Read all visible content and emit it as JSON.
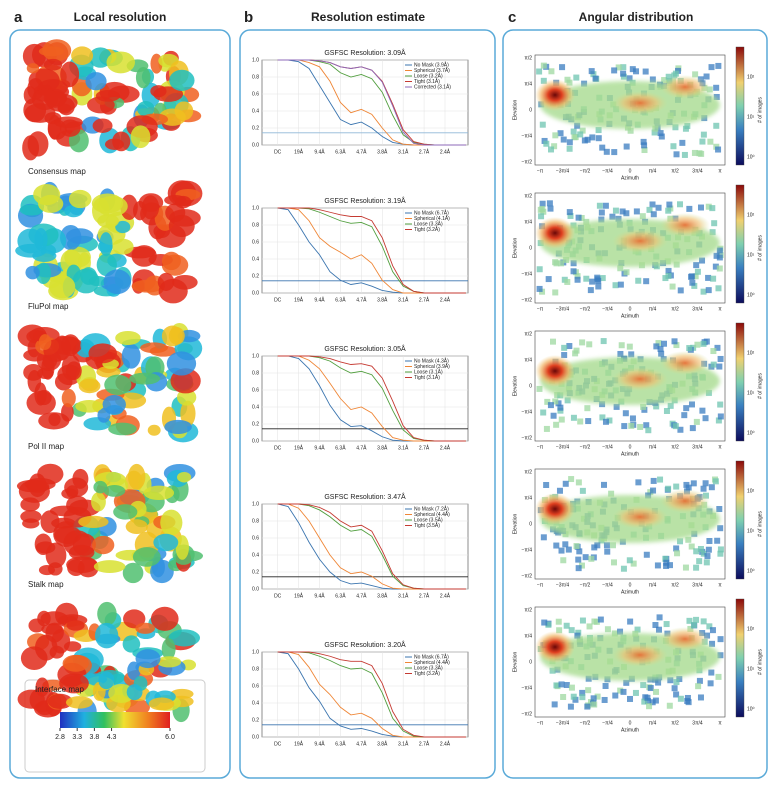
{
  "panels": [
    {
      "letter": "a",
      "title": "Local resolution"
    },
    {
      "letter": "b",
      "title": "Resolution estimate"
    },
    {
      "letter": "c",
      "title": "Angular distribution"
    }
  ],
  "local_resolution": {
    "maps": [
      "Consensus map",
      "FluPol map",
      "Pol II map",
      "Stalk map",
      "Interface map"
    ],
    "colorbar_ticks": [
      2.8,
      3.3,
      3.8,
      4.3,
      {
        "value": 6,
        "label": "6.0"
      }
    ],
    "colorbar_lim": [
      2.8,
      6
    ]
  },
  "fsc_axes": {
    "xlim": [
      -0.75,
      9.1
    ],
    "xticks": [
      {
        "value": 0,
        "label": "DC"
      },
      {
        "value": 1,
        "label": "19Å"
      },
      {
        "value": 2,
        "label": "9.4Å"
      },
      {
        "value": 3,
        "label": "6.3Å"
      },
      {
        "value": 4,
        "label": "4.7Å"
      },
      {
        "value": 5,
        "label": "3.8Å"
      },
      {
        "value": 6,
        "label": "3.1Å"
      },
      {
        "value": 7,
        "label": "2.7Å"
      },
      {
        "value": 8,
        "label": "2.4Å"
      }
    ],
    "ylim": [
      0,
      1
    ],
    "yticks": [
      {
        "value": 0,
        "label": "0.0"
      },
      {
        "value": 0.2,
        "label": "0.2"
      },
      {
        "value": 0.4,
        "label": "0.4"
      },
      {
        "value": 0.6,
        "label": "0.6"
      },
      {
        "value": 0.8,
        "label": "0.8"
      },
      {
        "value": 1,
        "label": "1.0"
      }
    ],
    "grid": true
  },
  "chart_data": [
    {
      "type": "line",
      "title": "GSFSC Resolution: 3.09Å",
      "threshold": 0.143,
      "threshold_color": "#8fb8d8",
      "x": [
        0,
        0.5,
        1,
        1.5,
        2,
        2.5,
        3,
        3.5,
        4,
        4.5,
        5,
        5.5,
        6,
        6.5,
        7,
        7.5,
        8,
        8.5,
        9
      ],
      "series": [
        {
          "name": "No Mask (3.9Å)",
          "color": "#3b75af",
          "values": [
            1,
            1,
            0.98,
            0.9,
            0.7,
            0.5,
            0.3,
            0.24,
            0.27,
            0.2,
            0.1,
            0.03,
            0.01,
            0,
            0,
            0,
            0,
            0,
            0
          ]
        },
        {
          "name": "Spherical (3.7Å)",
          "color": "#ef8636",
          "values": [
            1,
            1,
            1,
            0.97,
            0.92,
            0.75,
            0.5,
            0.38,
            0.42,
            0.36,
            0.2,
            0.06,
            0.01,
            0,
            0,
            0,
            0,
            0,
            0
          ]
        },
        {
          "name": "Loose (3.2Å)",
          "color": "#519e3e",
          "values": [
            1,
            1,
            1,
            1,
            0.98,
            0.95,
            0.85,
            0.8,
            0.83,
            0.78,
            0.62,
            0.35,
            0.12,
            0.03,
            0.01,
            0,
            0,
            0,
            0
          ]
        },
        {
          "name": "Tight (3.1Å)",
          "color": "#c53a32",
          "values": [
            1,
            1,
            1,
            1,
            0.99,
            0.97,
            0.92,
            0.9,
            0.92,
            0.88,
            0.75,
            0.48,
            0.18,
            0.04,
            0.01,
            0,
            0,
            0,
            0
          ]
        },
        {
          "name": "Corrected (3.1Å)",
          "color": "#8d69b8",
          "values": [
            1,
            1,
            1,
            1,
            0.99,
            0.97,
            0.92,
            0.9,
            0.92,
            0.88,
            0.74,
            0.46,
            0.15,
            0.02,
            0,
            0,
            0,
            0,
            0
          ]
        }
      ]
    },
    {
      "type": "line",
      "title": "GSFSC Resolution: 3.19Å",
      "threshold": 0.143,
      "threshold_color": "#3b75af",
      "x": [
        0,
        0.5,
        1,
        1.5,
        2,
        2.5,
        3,
        3.5,
        4,
        4.5,
        5,
        5.5,
        6,
        6.5,
        7,
        7.5,
        8,
        8.5,
        9
      ],
      "series": [
        {
          "name": "No Mask (6.7Å)",
          "color": "#3b75af",
          "values": [
            1,
            0.98,
            0.8,
            0.6,
            0.45,
            0.25,
            0.15,
            0.1,
            0.12,
            0.08,
            0.03,
            0.01,
            0,
            0,
            0,
            0,
            0,
            0,
            0
          ]
        },
        {
          "name": "Spherical (4.1Å)",
          "color": "#ef8636",
          "values": [
            1,
            1,
            0.98,
            0.85,
            0.65,
            0.55,
            0.48,
            0.4,
            0.45,
            0.35,
            0.15,
            0.04,
            0,
            0,
            0,
            0,
            0,
            0,
            0
          ]
        },
        {
          "name": "Loose (3.3Å)",
          "color": "#519e3e",
          "values": [
            1,
            1,
            1,
            0.99,
            0.95,
            0.9,
            0.85,
            0.82,
            0.83,
            0.78,
            0.55,
            0.25,
            0.08,
            0.02,
            0,
            0,
            0,
            0,
            0
          ]
        },
        {
          "name": "Tight (3.2Å)",
          "color": "#c53a32",
          "values": [
            1,
            1,
            1,
            1,
            0.98,
            0.95,
            0.92,
            0.9,
            0.9,
            0.85,
            0.65,
            0.32,
            0.1,
            0.02,
            0,
            0,
            0,
            0,
            0
          ]
        }
      ]
    },
    {
      "type": "line",
      "title": "GSFSC Resolution: 3.05Å",
      "threshold": 0.143,
      "threshold_color": "#222222",
      "x": [
        0,
        0.5,
        1,
        1.5,
        2,
        2.5,
        3,
        3.5,
        4,
        4.5,
        5,
        5.5,
        6,
        6.5,
        7,
        7.5,
        8,
        8.5,
        9
      ],
      "series": [
        {
          "name": "No Mask (4.3Å)",
          "color": "#3b75af",
          "values": [
            1,
            1,
            0.97,
            0.85,
            0.65,
            0.42,
            0.25,
            0.17,
            0.18,
            0.12,
            0.05,
            0.01,
            0,
            0,
            0,
            0,
            0,
            0,
            0
          ]
        },
        {
          "name": "Spherical (3.9Å)",
          "color": "#ef8636",
          "values": [
            1,
            1,
            1,
            0.95,
            0.85,
            0.68,
            0.5,
            0.37,
            0.4,
            0.33,
            0.17,
            0.04,
            0.01,
            0,
            0,
            0,
            0,
            0,
            0
          ]
        },
        {
          "name": "Loose (3.1Å)",
          "color": "#519e3e",
          "values": [
            1,
            1,
            1,
            1,
            0.98,
            0.94,
            0.86,
            0.8,
            0.82,
            0.78,
            0.62,
            0.36,
            0.13,
            0.03,
            0.01,
            0,
            0,
            0,
            0
          ]
        },
        {
          "name": "Tight (3.1Å)",
          "color": "#c53a32",
          "values": [
            1,
            1,
            1,
            1,
            0.99,
            0.97,
            0.93,
            0.9,
            0.91,
            0.88,
            0.74,
            0.47,
            0.18,
            0.04,
            0.01,
            0,
            0,
            0,
            0
          ]
        }
      ]
    },
    {
      "type": "line",
      "title": "GSFSC Resolution: 3.47Å",
      "threshold": 0.143,
      "threshold_color": "#222222",
      "x": [
        0,
        0.5,
        1,
        1.5,
        2,
        2.5,
        3,
        3.5,
        4,
        4.5,
        5,
        5.5,
        6,
        6.5,
        7,
        7.5,
        8,
        8.5,
        9
      ],
      "series": [
        {
          "name": "No Mask (7.2Å)",
          "color": "#3b75af",
          "values": [
            1,
            0.97,
            0.78,
            0.55,
            0.35,
            0.2,
            0.1,
            0.06,
            0.07,
            0.04,
            0.01,
            0,
            0,
            0,
            0,
            0,
            0,
            0,
            0
          ]
        },
        {
          "name": "Spherical (4.4Å)",
          "color": "#ef8636",
          "values": [
            1,
            1,
            0.95,
            0.8,
            0.6,
            0.4,
            0.25,
            0.18,
            0.2,
            0.15,
            0.06,
            0.01,
            0,
            0,
            0,
            0,
            0,
            0,
            0
          ]
        },
        {
          "name": "Loose (3.5Å)",
          "color": "#519e3e",
          "values": [
            1,
            1,
            1,
            0.98,
            0.93,
            0.85,
            0.75,
            0.68,
            0.7,
            0.62,
            0.4,
            0.15,
            0.04,
            0.01,
            0,
            0,
            0,
            0,
            0
          ]
        },
        {
          "name": "Tight (3.5Å)",
          "color": "#c53a32",
          "values": [
            1,
            1,
            1,
            0.99,
            0.96,
            0.9,
            0.8,
            0.73,
            0.75,
            0.68,
            0.45,
            0.18,
            0.05,
            0.01,
            0,
            0,
            0,
            0,
            0
          ]
        }
      ]
    },
    {
      "type": "line",
      "title": "GSFSC Resolution: 3.20Å",
      "threshold": 0.143,
      "threshold_color": "#3b75af",
      "x": [
        0,
        0.5,
        1,
        1.5,
        2,
        2.5,
        3,
        3.5,
        4,
        4.5,
        5,
        5.5,
        6,
        6.5,
        7,
        7.5,
        8,
        8.5,
        9
      ],
      "series": [
        {
          "name": "No Mask (6.7Å)",
          "color": "#3b75af",
          "values": [
            1,
            0.98,
            0.8,
            0.58,
            0.42,
            0.22,
            0.13,
            0.09,
            0.1,
            0.07,
            0.03,
            0.01,
            0,
            0,
            0,
            0,
            0,
            0,
            0
          ]
        },
        {
          "name": "Spherical (4.4Å)",
          "color": "#ef8636",
          "values": [
            1,
            1,
            0.97,
            0.82,
            0.62,
            0.5,
            0.35,
            0.26,
            0.28,
            0.22,
            0.1,
            0.02,
            0,
            0,
            0,
            0,
            0,
            0,
            0
          ]
        },
        {
          "name": "Loose (3.3Å)",
          "color": "#519e3e",
          "values": [
            1,
            1,
            1,
            0.99,
            0.95,
            0.9,
            0.84,
            0.8,
            0.81,
            0.75,
            0.52,
            0.22,
            0.07,
            0.01,
            0,
            0,
            0,
            0,
            0
          ]
        },
        {
          "name": "Tight (3.2Å)",
          "color": "#c53a32",
          "values": [
            1,
            1,
            1,
            1,
            0.98,
            0.95,
            0.91,
            0.89,
            0.89,
            0.84,
            0.63,
            0.3,
            0.09,
            0.02,
            0,
            0,
            0,
            0,
            0
          ]
        }
      ]
    }
  ],
  "angular": {
    "xlabel": "Azimuth",
    "ylabel": "Elevation",
    "colorbar_label": "# of images",
    "xticks": [
      "−π",
      "−3π/4",
      "−π/2",
      "−π/4",
      "0",
      "π/4",
      "π/2",
      "3π/4",
      "π"
    ],
    "yticks": [
      "π/2",
      "π/4",
      "0",
      "−π/4",
      "−π/2"
    ],
    "colorbar_ticks": [
      "10⁰",
      "10¹",
      "10²"
    ]
  }
}
